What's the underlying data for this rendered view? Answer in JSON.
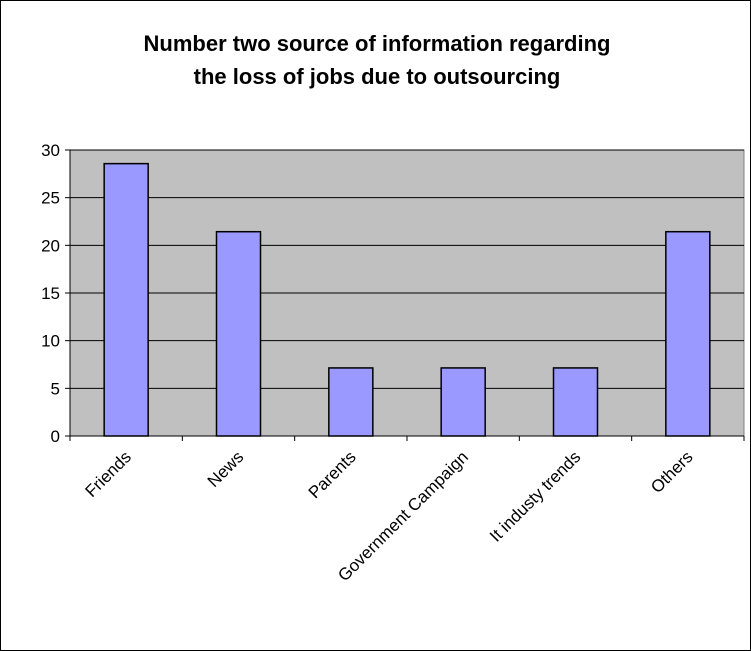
{
  "chart_data": {
    "type": "bar",
    "title_lines": [
      "Number two source of information regarding",
      "the loss of jobs due to outsourcing"
    ],
    "xlabel": "",
    "ylabel": "",
    "categories": [
      "Friends",
      "News",
      "Parents",
      "Government Campaign",
      "It industy trends",
      "Others"
    ],
    "values": [
      28.57,
      21.43,
      7.14,
      7.14,
      7.14,
      21.43
    ],
    "ylim": [
      0,
      30
    ],
    "yticks": [
      0,
      5,
      10,
      15,
      20,
      25,
      30
    ],
    "grid": true,
    "legend": "none",
    "colors": {
      "bar_fill": "#9999ff",
      "bar_stroke": "#000000",
      "plot_background": "#c0c0c0",
      "gridline": "#000000"
    }
  }
}
